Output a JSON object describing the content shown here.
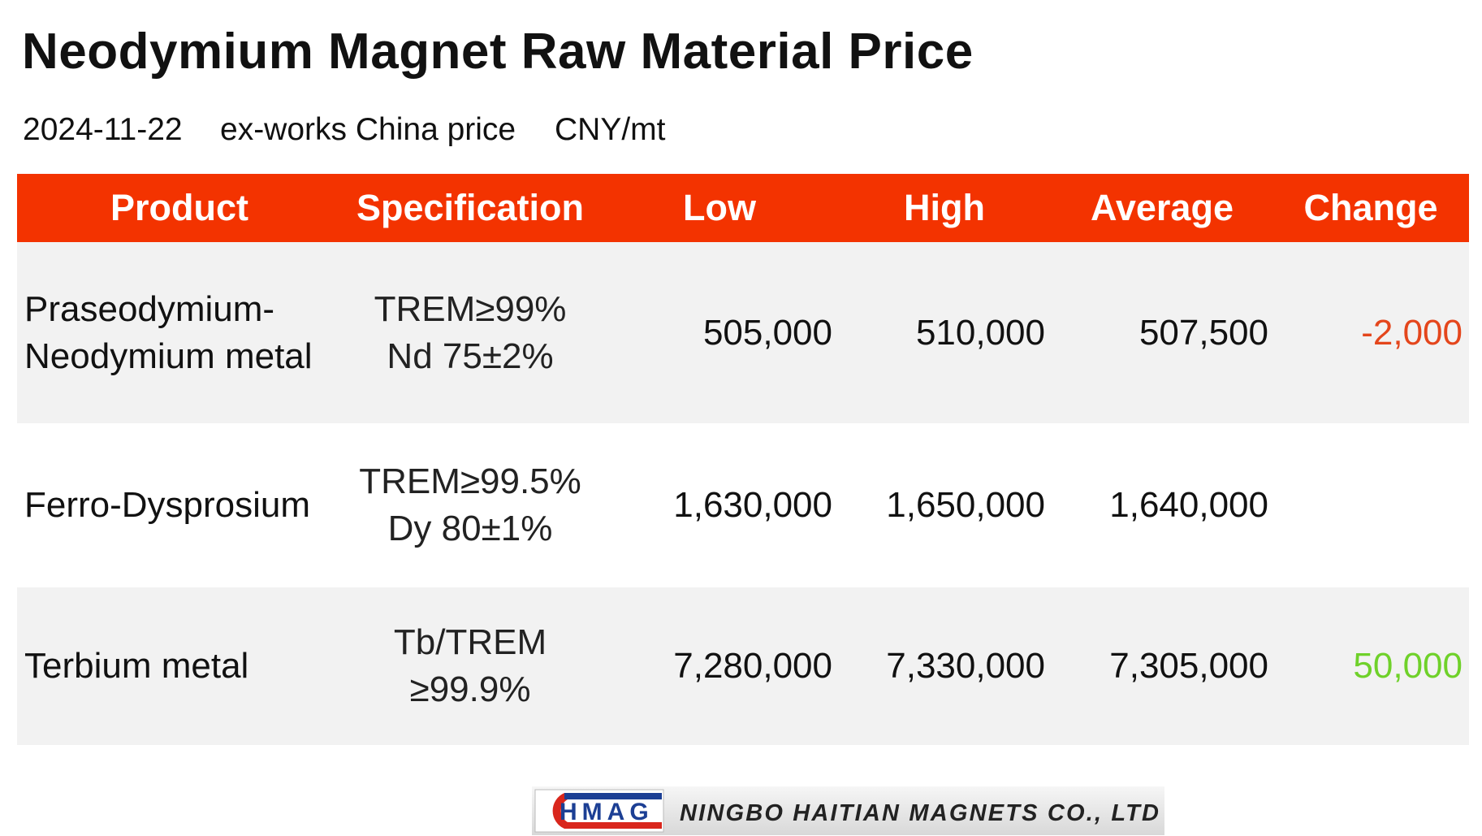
{
  "header": {
    "title": "Neodymium Magnet Raw Material Price",
    "date": "2024-11-22",
    "basis": "ex-works China price",
    "unit": "CNY/mt"
  },
  "table": {
    "columns": [
      "Product",
      "Specification",
      "Low",
      "High",
      "Average",
      "Change"
    ],
    "rows": [
      {
        "product": [
          "Praseodymium-",
          "Neodymium metal"
        ],
        "specification": [
          "TREM≥99%",
          "Nd 75±2%"
        ],
        "low": "505,000",
        "high": "510,000",
        "average": "507,500",
        "change": "-2,000"
      },
      {
        "product": [
          "Ferro-Dysprosium"
        ],
        "specification": [
          "TREM≥99.5%",
          "Dy 80±1%"
        ],
        "low": "1,630,000",
        "high": "1,650,000",
        "average": "1,640,000",
        "change": null
      },
      {
        "product": [
          "Terbium metal"
        ],
        "specification": [
          "Tb/TREM",
          "≥99.9%"
        ],
        "low": "7,280,000",
        "high": "7,330,000",
        "average": "7,305,000",
        "change": "50,000"
      }
    ]
  },
  "footer": {
    "logo_mark": "HMAG",
    "company": "NINGBO HAITIAN MAGNETS CO., LTD"
  }
}
